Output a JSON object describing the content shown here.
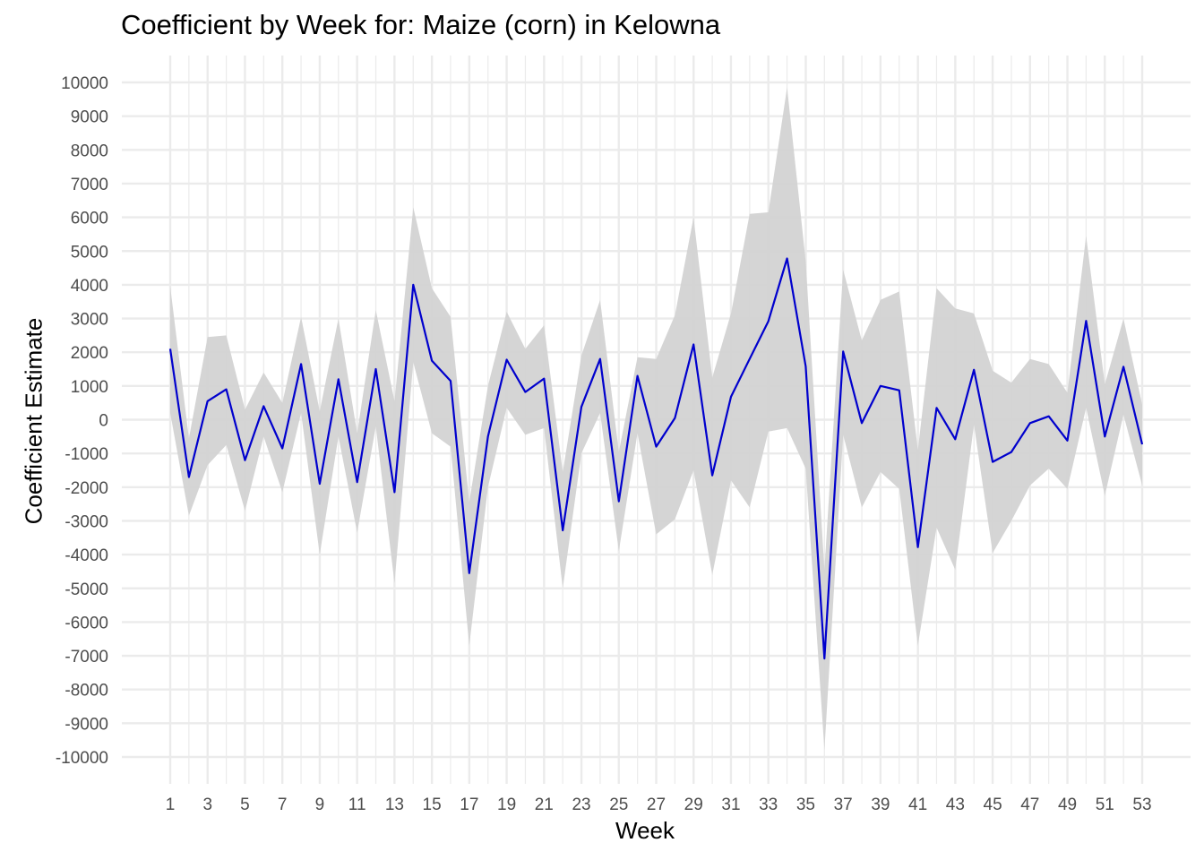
{
  "chart_data": {
    "type": "line",
    "title": "Coefficient by Week for: Maize (corn) in Kelowna",
    "xlabel": "Week",
    "ylabel": "Coefficient Estimate",
    "xlim": [
      1,
      53
    ],
    "ylim": [
      -10000,
      10000
    ],
    "grid": true,
    "x_ticks": [
      1,
      3,
      5,
      7,
      9,
      11,
      13,
      15,
      17,
      19,
      21,
      23,
      25,
      27,
      29,
      31,
      33,
      35,
      37,
      39,
      41,
      43,
      45,
      47,
      49,
      51,
      53
    ],
    "y_ticks": [
      10000,
      9000,
      8000,
      7000,
      6000,
      5000,
      4000,
      3000,
      2000,
      1000,
      0,
      -1000,
      -2000,
      -3000,
      -4000,
      -5000,
      -6000,
      -7000,
      -8000,
      -9000,
      -10000
    ],
    "line_color": "#0000CD",
    "band_color": "#D3D3D3",
    "grid_color": "#EBEBEB",
    "series": [
      {
        "x": [
          1,
          2,
          3,
          4,
          5,
          6,
          7,
          8,
          9,
          10,
          11,
          12,
          13,
          14,
          15,
          16,
          17,
          18,
          19,
          20,
          21,
          22,
          23,
          24,
          25,
          26,
          27,
          28,
          29,
          30,
          31,
          32,
          33,
          34,
          35,
          36,
          37,
          38,
          39,
          40,
          41,
          42,
          43,
          44,
          45,
          46,
          47,
          48,
          49,
          50,
          51,
          52,
          53
        ],
        "estimate": [
          2100,
          -1700,
          550,
          900,
          -1200,
          400,
          -850,
          1650,
          -1900,
          1200,
          -1850,
          1500,
          -2150,
          4000,
          1750,
          1150,
          -4550,
          -500,
          1780,
          820,
          1220,
          -3280,
          380,
          1800,
          -2420,
          1300,
          -800,
          50,
          2230,
          -1650,
          680,
          1800,
          2920,
          4780,
          1580,
          -7080,
          2020,
          -100,
          1000,
          870,
          -3780,
          350,
          -580,
          1480,
          -1250,
          -960,
          -100,
          100,
          -620,
          2930,
          -500,
          1570,
          -730
        ],
        "lower": [
          200,
          -2850,
          -1350,
          -750,
          -2700,
          -500,
          -2150,
          200,
          -4000,
          -500,
          -3350,
          -200,
          -4850,
          1700,
          -400,
          -800,
          -6700,
          -2000,
          350,
          -450,
          -250,
          -5000,
          -1000,
          200,
          -3900,
          -400,
          -3400,
          -2950,
          -1500,
          -4600,
          -1800,
          -2600,
          -350,
          -250,
          -1450,
          -9800,
          -450,
          -2600,
          -1550,
          -2050,
          -6700,
          -3200,
          -4450,
          -150,
          -3950,
          -3000,
          -1950,
          -1450,
          -2050,
          350,
          -2250,
          150,
          -1950
        ],
        "upper": [
          3950,
          -550,
          2450,
          2500,
          300,
          1400,
          500,
          3050,
          250,
          3000,
          -400,
          3250,
          550,
          6300,
          3900,
          3050,
          -2450,
          1000,
          3200,
          2100,
          2800,
          -1550,
          1900,
          3550,
          -950,
          1850,
          1800,
          3100,
          6000,
          1250,
          3150,
          6100,
          6150,
          9850,
          4700,
          -4450,
          4450,
          2350,
          3550,
          3800,
          -900,
          3900,
          3300,
          3150,
          1450,
          1100,
          1800,
          1650,
          800,
          5450,
          1050,
          3000,
          450
        ]
      }
    ]
  }
}
